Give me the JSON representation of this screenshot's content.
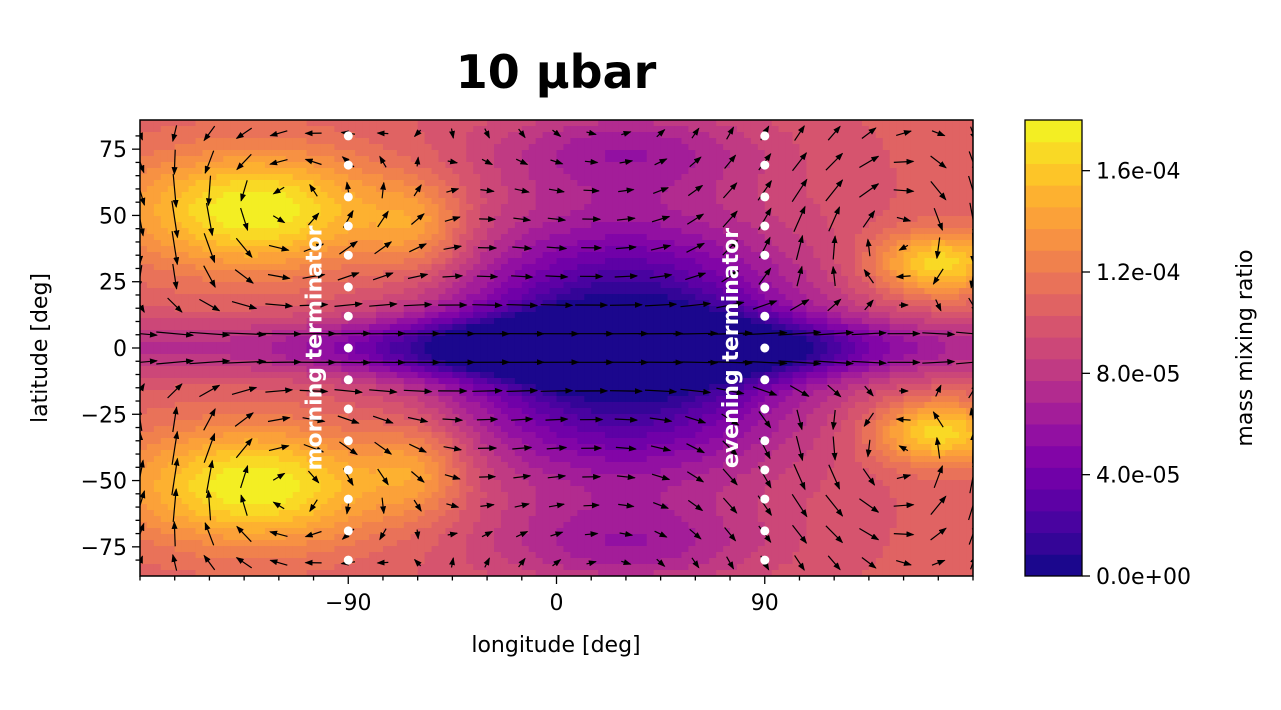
{
  "chart_data": {
    "type": "heatmap",
    "title": "10 µbar",
    "xlabel": "longitude [deg]",
    "ylabel": "latitude [deg]",
    "xlim": [
      -180,
      180
    ],
    "ylim": [
      -86,
      86
    ],
    "xticks": [
      -90,
      0,
      90
    ],
    "xtick_labels": [
      "−90",
      "0",
      "90"
    ],
    "yticks": [
      75,
      50,
      25,
      0,
      -25,
      -50,
      -75
    ],
    "ytick_labels": [
      "75",
      "50",
      "25",
      "0",
      "−25",
      "−50",
      "−75"
    ],
    "colorbar": {
      "label": "mass mixing ratio",
      "colormap": "plasma",
      "range": [
        0,
        0.00018
      ],
      "ticks": [
        0,
        4e-05,
        8e-05,
        0.00012,
        0.00016
      ],
      "tick_labels": [
        "0.0e+00",
        "4.0e-05",
        "8.0e-05",
        "1.2e-04",
        "1.6e-04"
      ]
    },
    "annotations": [
      {
        "text": "morning terminator",
        "longitude": -90
      },
      {
        "text": "evening terminator",
        "longitude": 90
      }
    ],
    "terminator_latitudes": [
      80,
      69,
      57,
      46,
      35,
      23,
      12,
      0,
      -12,
      -23,
      -35,
      -46,
      -57,
      -69,
      -80
    ],
    "field_description": "mixing ratio high (~1.7e-4) in the western mid-latitude gyres and near the eastern limb, very low (~0) on the equator and the central dayside, with circulating wind vectors"
  }
}
